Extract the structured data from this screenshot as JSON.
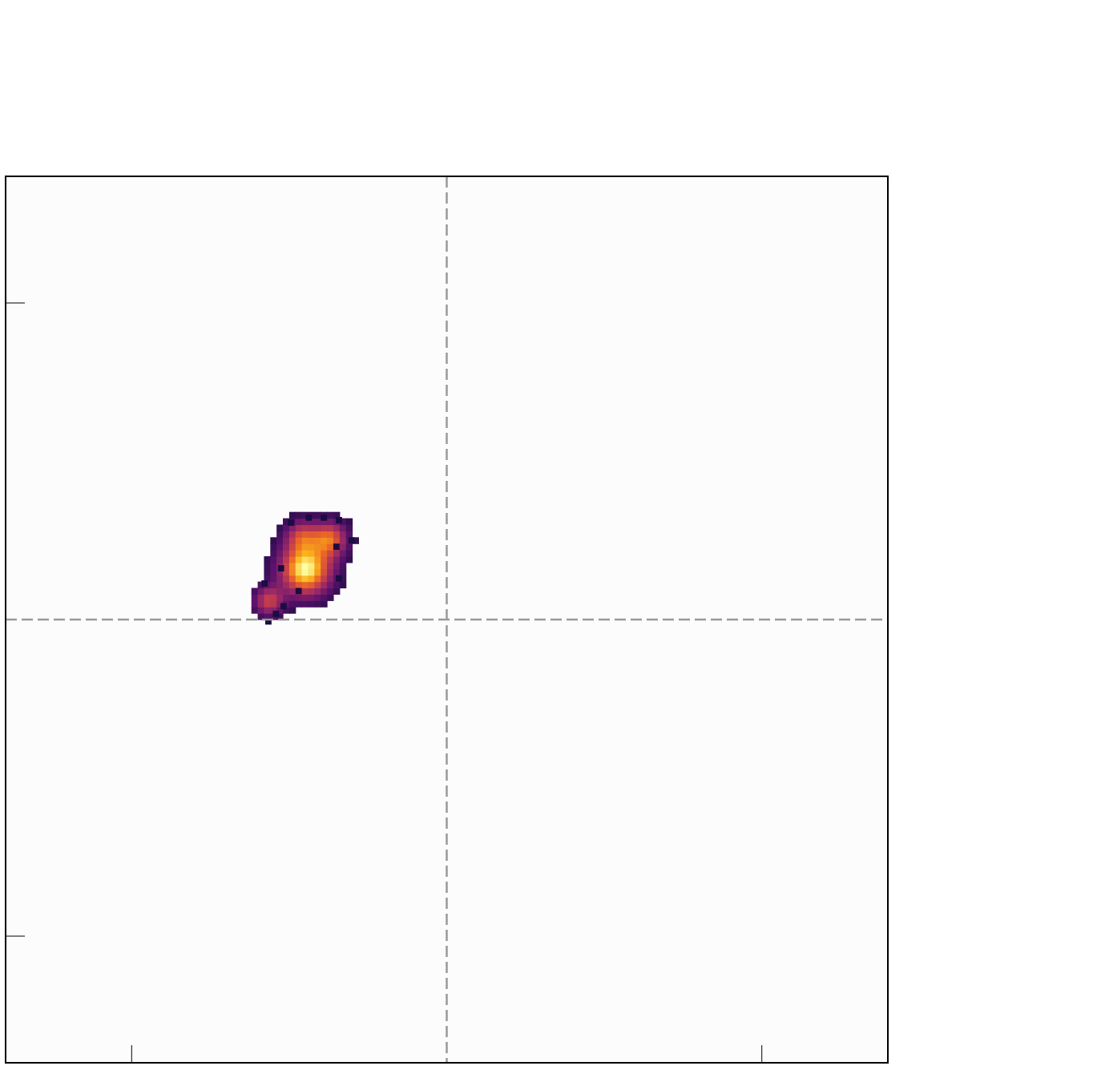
{
  "chart_data": {
    "type": "heatmap",
    "title": "",
    "xlabel": "",
    "ylabel": "",
    "xlim": [
      -35,
      35
    ],
    "ylim": [
      -35,
      35
    ],
    "x_ticks": [
      -25,
      25
    ],
    "y_ticks": [
      -25,
      25
    ],
    "grid": false,
    "reference_lines": {
      "x": 0,
      "y": 0,
      "style": "dashed",
      "color": "#999999"
    },
    "background_color": "#fcfcfc",
    "colormap": "inferno",
    "colormap_stops": [
      "#1b0c41",
      "#5c126e",
      "#932667",
      "#c73e4c",
      "#ed6925",
      "#fbb61a",
      "#fcffa4"
    ],
    "bin_size": 0.5,
    "blobs": [
      {
        "x": -11.2,
        "y": 4.0,
        "sigma": 1.35,
        "peak": 1.0
      },
      {
        "x": -9.3,
        "y": 6.4,
        "sigma": 0.95,
        "peak": 0.62
      },
      {
        "x": -11.5,
        "y": 6.6,
        "sigma": 0.9,
        "peak": 0.45
      },
      {
        "x": -14.1,
        "y": 1.5,
        "sigma": 0.8,
        "peak": 0.5
      }
    ],
    "scatter_cells": [
      [
        -11.2,
        7.8
      ],
      [
        -10.0,
        7.8
      ],
      [
        -8.8,
        7.6
      ],
      [
        -7.8,
        6.0
      ],
      [
        -9.0,
        5.5
      ],
      [
        -12.6,
        7.4
      ],
      [
        -13.4,
        3.8
      ],
      [
        -8.8,
        3.0
      ],
      [
        -12.0,
        2.0
      ],
      [
        -14.7,
        2.6
      ],
      [
        -13.8,
        0.2
      ],
      [
        -13.2,
        0.8
      ],
      [
        -14.4,
        -0.4
      ]
    ]
  }
}
